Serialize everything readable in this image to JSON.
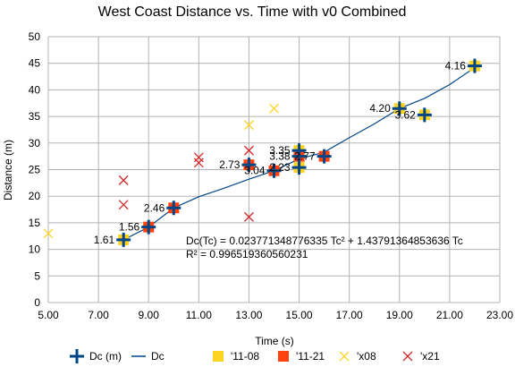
{
  "chart_data": {
    "type": "scatter",
    "title": "West Coast Distance vs. Time with v0 Combined",
    "xlabel": "Time (s)",
    "ylabel": "Distance (m)",
    "xlim": [
      5,
      23
    ],
    "ylim": [
      0,
      50
    ],
    "x_ticks": [
      "5.00",
      "7.00",
      "9.00",
      "11.00",
      "13.00",
      "15.00",
      "17.00",
      "19.00",
      "21.00",
      "23.00"
    ],
    "y_ticks": [
      "0",
      "5",
      "10",
      "15",
      "20",
      "25",
      "30",
      "35",
      "40",
      "45",
      "50"
    ],
    "grid": true,
    "legend_position": "bottom",
    "series": [
      {
        "name": "Dc (m)",
        "marker": "plus",
        "color": "#004586",
        "points": [
          {
            "x": 8,
            "y": 11.8,
            "label": "1.61"
          },
          {
            "x": 9,
            "y": 14.2,
            "label": "1.56"
          },
          {
            "x": 10,
            "y": 17.8,
            "label": "2.46"
          },
          {
            "x": 13,
            "y": 25.9,
            "label": "2.73"
          },
          {
            "x": 14,
            "y": 24.8,
            "label": "3.04"
          },
          {
            "x": 15,
            "y": 25.4,
            "label": "2.23"
          },
          {
            "x": 15,
            "y": 28.6,
            "label": "3.35"
          },
          {
            "x": 15,
            "y": 27.5,
            "label": "3.38"
          },
          {
            "x": 16,
            "y": 27.5,
            "label": "2.77"
          },
          {
            "x": 19,
            "y": 36.5,
            "label": "4.20"
          },
          {
            "x": 20,
            "y": 35.3,
            "label": "3.62"
          },
          {
            "x": 22,
            "y": 44.5,
            "label": "4.16"
          }
        ]
      },
      {
        "name": "Dc",
        "marker": "line",
        "color": "#004586",
        "points": [
          {
            "x": 8,
            "y": 11.8
          },
          {
            "x": 9,
            "y": 14.2
          },
          {
            "x": 10,
            "y": 17.8
          },
          {
            "x": 11,
            "y": 19.9
          },
          {
            "x": 12,
            "y": 21.5
          },
          {
            "x": 13,
            "y": 23.2
          },
          {
            "x": 14,
            "y": 24.8
          },
          {
            "x": 15,
            "y": 27.0
          },
          {
            "x": 16,
            "y": 28.3
          },
          {
            "x": 17,
            "y": 31.0
          },
          {
            "x": 18,
            "y": 33.6
          },
          {
            "x": 19,
            "y": 36.5
          },
          {
            "x": 20,
            "y": 38.4
          },
          {
            "x": 21,
            "y": 41.0
          },
          {
            "x": 22,
            "y": 44.2
          }
        ]
      },
      {
        "name": "'11-08",
        "marker": "square",
        "color": "#ffd320",
        "points": [
          {
            "x": 8,
            "y": 11.8
          },
          {
            "x": 15,
            "y": 25.4
          },
          {
            "x": 15,
            "y": 28.6
          },
          {
            "x": 19,
            "y": 36.5
          },
          {
            "x": 20,
            "y": 35.3
          },
          {
            "x": 22,
            "y": 44.5
          }
        ]
      },
      {
        "name": "'11-21",
        "marker": "square",
        "color": "#ff420e",
        "points": [
          {
            "x": 9,
            "y": 14.2
          },
          {
            "x": 10,
            "y": 17.8
          },
          {
            "x": 13,
            "y": 25.9
          },
          {
            "x": 14,
            "y": 24.8
          },
          {
            "x": 15,
            "y": 27.5
          },
          {
            "x": 16,
            "y": 27.5
          }
        ]
      },
      {
        "name": "'x08",
        "marker": "x",
        "color": "#ffd320",
        "points": [
          {
            "x": 5,
            "y": 13.0
          },
          {
            "x": 13,
            "y": 33.4
          },
          {
            "x": 14,
            "y": 36.5
          }
        ]
      },
      {
        "name": "'x21",
        "marker": "x",
        "color": "#d62728",
        "points": [
          {
            "x": 8,
            "y": 23.0
          },
          {
            "x": 8,
            "y": 18.4
          },
          {
            "x": 11,
            "y": 27.3
          },
          {
            "x": 11,
            "y": 26.3
          },
          {
            "x": 13,
            "y": 28.6
          },
          {
            "x": 13,
            "y": 16.1
          }
        ]
      }
    ],
    "annotations": [
      "Dc(Tc) = 0.023771348776335 Tc² + 1.43791364853636 Tc",
      "R² = 0.996519360560231"
    ]
  }
}
